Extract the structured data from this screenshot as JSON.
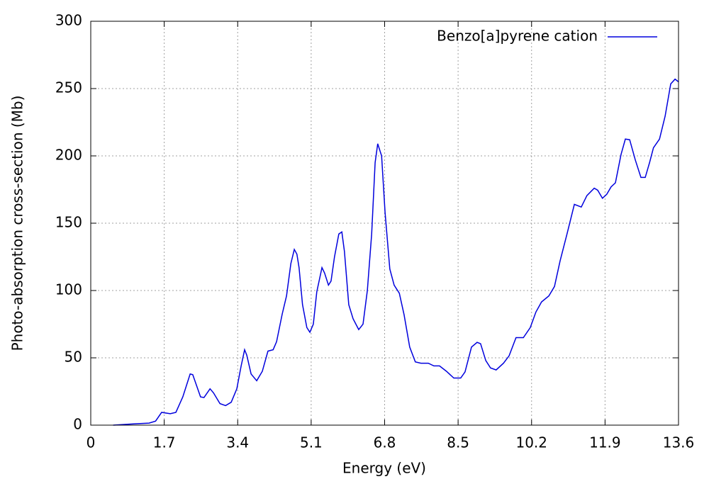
{
  "chart_data": {
    "type": "line",
    "xlabel": "Energy (eV)",
    "ylabel": "Photo-absorption cross-section (Mb)",
    "xlim": [
      0,
      13.6
    ],
    "xticks": [
      0,
      1.7,
      3.4,
      5.1,
      6.8,
      8.5,
      10.2,
      11.9,
      13.6
    ],
    "ylim": [
      0,
      300
    ],
    "yticks": [
      0,
      50,
      100,
      150,
      200,
      250,
      300
    ],
    "grid": true,
    "legend": "top-right",
    "x": [
      0.52,
      1.02,
      1.35,
      1.5,
      1.64,
      1.84,
      1.97,
      2.13,
      2.3,
      2.36,
      2.54,
      2.62,
      2.76,
      2.84,
      2.99,
      3.12,
      3.25,
      3.38,
      3.48,
      3.56,
      3.61,
      3.71,
      3.84,
      3.97,
      4.1,
      4.22,
      4.3,
      4.43,
      4.53,
      4.63,
      4.71,
      4.77,
      4.82,
      4.9,
      5.0,
      5.07,
      5.15,
      5.23,
      5.35,
      5.41,
      5.5,
      5.56,
      5.64,
      5.74,
      5.81,
      5.87,
      5.97,
      6.07,
      6.2,
      6.3,
      6.4,
      6.5,
      6.58,
      6.64,
      6.73,
      6.81,
      6.92,
      7.02,
      7.14,
      7.25,
      7.38,
      7.51,
      7.64,
      7.81,
      7.94,
      8.07,
      8.23,
      8.4,
      8.56,
      8.66,
      8.81,
      8.94,
      9.02,
      9.14,
      9.25,
      9.38,
      9.55,
      9.68,
      9.84,
      10.01,
      10.17,
      10.3,
      10.43,
      10.6,
      10.73,
      10.86,
      11.02,
      11.19,
      11.35,
      11.48,
      11.65,
      11.73,
      11.84,
      11.94,
      12.04,
      12.14,
      12.27,
      12.37,
      12.47,
      12.6,
      12.73,
      12.83,
      12.93,
      13.02,
      13.16,
      13.29,
      13.42,
      13.52,
      13.6
    ],
    "series": [
      {
        "name": "Benzo[a]pyrene cation",
        "color": "#0000dd",
        "values": [
          0,
          1,
          1.5,
          3,
          9.5,
          8.5,
          9.5,
          21,
          38,
          37.5,
          21,
          20.5,
          27,
          24,
          16,
          14.5,
          17,
          27,
          44,
          56,
          52,
          38,
          33,
          40,
          55,
          56,
          62,
          82.5,
          96,
          120,
          130.5,
          127,
          117,
          89.5,
          72.5,
          69,
          75,
          99,
          117,
          113,
          104,
          107,
          125,
          142,
          143.5,
          129,
          89.5,
          79,
          71,
          75,
          100,
          142,
          195,
          209,
          200,
          158,
          116,
          104,
          98,
          82,
          58,
          47,
          46,
          46,
          44,
          44,
          40,
          35,
          35,
          39.5,
          58,
          61.5,
          60.5,
          48,
          42.5,
          41,
          46,
          51.5,
          65,
          65,
          72.5,
          84,
          91.5,
          96,
          103,
          122,
          142,
          164,
          162,
          170.5,
          176,
          174.5,
          168.5,
          171.5,
          177,
          180,
          201,
          212.5,
          212,
          197,
          184,
          184,
          195,
          206,
          212.5,
          229.5,
          253.5,
          257,
          255
        ]
      }
    ]
  }
}
